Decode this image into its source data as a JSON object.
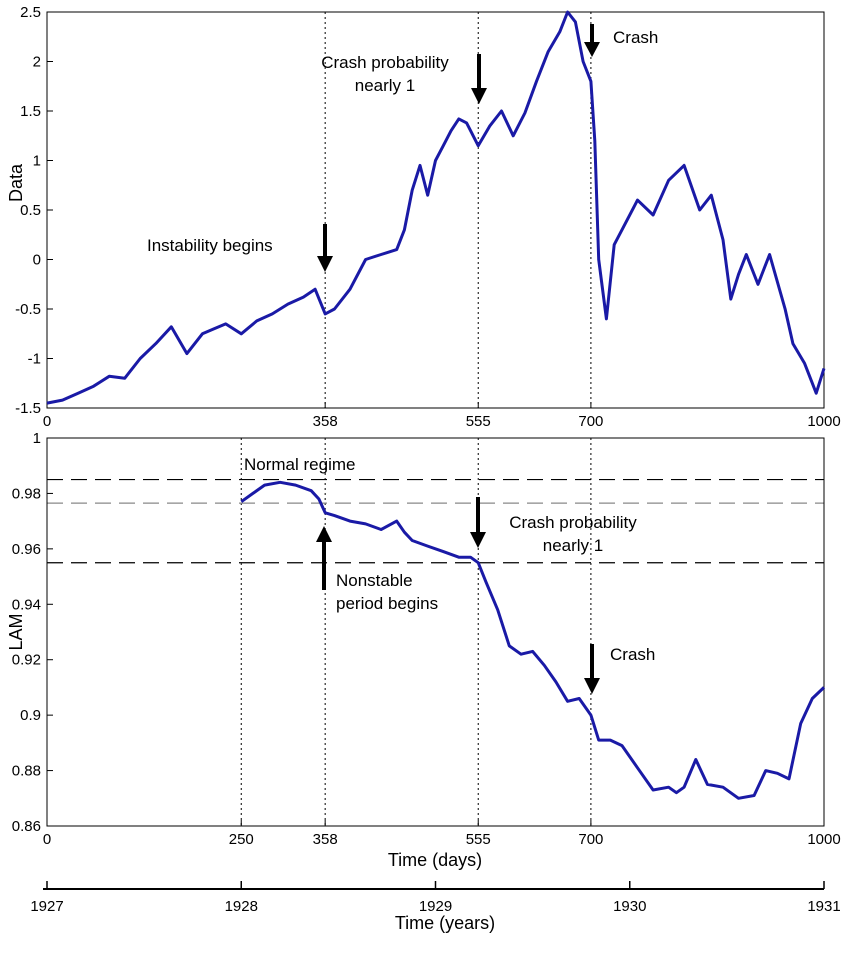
{
  "chart_data": [
    {
      "type": "line",
      "ylabel": "Data",
      "xlabel": "",
      "xlim": [
        0,
        1000
      ],
      "ylim": [
        -1.5,
        2.5
      ],
      "yticks": [
        "-1.5",
        "-1",
        "-0.5",
        "0",
        "0.5",
        "1",
        "1.5",
        "2",
        "2.5"
      ],
      "ytick_values": [
        -1.5,
        -1,
        -0.5,
        0,
        0.5,
        1,
        1.5,
        2,
        2.5
      ],
      "xticks": [
        "0",
        "358",
        "555",
        "700",
        "1000"
      ],
      "xtick_values": [
        0,
        358,
        555,
        700,
        1000
      ],
      "vlines": [
        358,
        555,
        700,
        1000
      ],
      "series": [
        {
          "color": "#1a1aa6",
          "x": [
            0,
            20,
            40,
            60,
            80,
            100,
            120,
            140,
            160,
            180,
            200,
            215,
            230,
            250,
            270,
            290,
            310,
            330,
            345,
            358,
            370,
            390,
            410,
            430,
            450,
            460,
            470,
            480,
            490,
            500,
            510,
            520,
            530,
            540,
            555,
            570,
            585,
            600,
            615,
            630,
            645,
            660,
            670,
            680,
            690,
            700,
            705,
            710,
            720,
            730,
            740,
            760,
            780,
            800,
            820,
            840,
            855,
            870,
            880,
            890,
            900,
            915,
            930,
            950,
            960,
            975,
            990,
            1000
          ],
          "y": [
            -1.45,
            -1.42,
            -1.35,
            -1.28,
            -1.18,
            -1.2,
            -1.0,
            -0.85,
            -0.68,
            -0.95,
            -0.75,
            -0.7,
            -0.65,
            -0.75,
            -0.62,
            -0.55,
            -0.45,
            -0.38,
            -0.3,
            -0.55,
            -0.5,
            -0.3,
            0.0,
            0.05,
            0.1,
            0.3,
            0.7,
            0.95,
            0.65,
            1.0,
            1.15,
            1.3,
            1.42,
            1.38,
            1.15,
            1.35,
            1.5,
            1.25,
            1.48,
            1.8,
            2.1,
            2.3,
            2.5,
            2.4,
            2.0,
            1.8,
            1.2,
            0.0,
            -0.6,
            0.15,
            0.3,
            0.6,
            0.45,
            0.8,
            0.95,
            0.5,
            0.65,
            0.2,
            -0.4,
            -0.15,
            0.05,
            -0.25,
            0.05,
            -0.5,
            -0.85,
            -1.05,
            -1.35,
            -1.1
          ]
        }
      ],
      "annotations": [
        {
          "text": "Instability begins",
          "x": 358,
          "y": -0.1
        },
        {
          "text": "Crash probability",
          "x": 555,
          "y": 2.0
        },
        {
          "text": "nearly 1",
          "x": 555,
          "y": 1.77
        },
        {
          "text": "Crash",
          "x": 700,
          "y": 2.2
        }
      ]
    },
    {
      "type": "line",
      "ylabel": "LAM",
      "xlabel": "Time (days)",
      "xlim": [
        0,
        1000
      ],
      "ylim": [
        0.86,
        1.0
      ],
      "yticks": [
        "0.86",
        "0.88",
        "0.9",
        "0.92",
        "0.94",
        "0.96",
        "0.98",
        "1"
      ],
      "ytick_values": [
        0.86,
        0.88,
        0.9,
        0.92,
        0.94,
        0.96,
        0.98,
        1.0
      ],
      "xticks": [
        "0",
        "250",
        "358",
        "555",
        "700",
        "1000"
      ],
      "xtick_values": [
        0,
        250,
        358,
        555,
        700,
        1000
      ],
      "vlines": [
        250,
        358,
        555,
        700,
        1000
      ],
      "hlines": [
        0.985,
        0.9765,
        0.955
      ],
      "series": [
        {
          "color": "#1a1aa6",
          "x": [
            250,
            265,
            280,
            300,
            320,
            340,
            350,
            358,
            370,
            390,
            410,
            430,
            450,
            460,
            470,
            490,
            510,
            530,
            545,
            555,
            565,
            580,
            595,
            610,
            625,
            640,
            655,
            670,
            685,
            700,
            710,
            725,
            740,
            760,
            780,
            800,
            810,
            820,
            835,
            850,
            870,
            890,
            910,
            925,
            940,
            955,
            970,
            985,
            1000
          ],
          "y": [
            0.977,
            0.98,
            0.983,
            0.984,
            0.983,
            0.981,
            0.978,
            0.973,
            0.972,
            0.97,
            0.969,
            0.967,
            0.97,
            0.966,
            0.963,
            0.961,
            0.959,
            0.957,
            0.957,
            0.955,
            0.948,
            0.938,
            0.925,
            0.922,
            0.923,
            0.918,
            0.912,
            0.905,
            0.906,
            0.9,
            0.891,
            0.891,
            0.889,
            0.881,
            0.873,
            0.874,
            0.872,
            0.874,
            0.884,
            0.875,
            0.874,
            0.87,
            0.871,
            0.88,
            0.879,
            0.877,
            0.897,
            0.906,
            0.91
          ]
        }
      ],
      "annotations": [
        {
          "text": "Normal regime",
          "x": 260,
          "y": 0.99
        },
        {
          "text": "Crash probability",
          "x": 580,
          "y": 0.9665
        },
        {
          "text": "nearly 1",
          "x": 580,
          "y": 0.9592
        },
        {
          "text": "Nonstable",
          "x": 375,
          "y": 0.9465
        },
        {
          "text": "period begins",
          "x": 375,
          "y": 0.9392
        },
        {
          "text": "Crash",
          "x": 715,
          "y": 0.918
        }
      ]
    }
  ],
  "years_axis": {
    "label": "Time (years)",
    "ticks": [
      "1927",
      "1928",
      "1929",
      "1930",
      "1931"
    ],
    "tick_days": [
      0,
      250,
      500,
      750,
      1000
    ]
  }
}
